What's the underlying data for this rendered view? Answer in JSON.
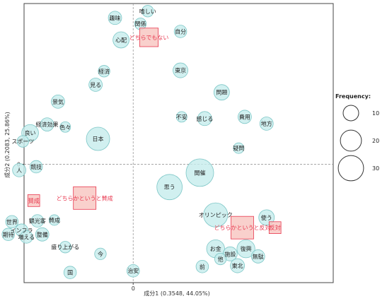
{
  "chart_data": {
    "type": "scatter",
    "xlabel": "成分1 (0.3548, 44.05%)",
    "ylabel": "成分2 (0.2083, 25.86%)",
    "x_ticks": [
      0
    ],
    "y_ticks": [
      0
    ],
    "xlim": [
      -0.9,
      1.65
    ],
    "ylim": [
      -1.4,
      1.9
    ],
    "legend": {
      "title": "Frequency:",
      "position": "right",
      "entries": [
        10,
        20,
        30
      ]
    },
    "categories": [
      {
        "label": "どちらでもない",
        "x": 0.13,
        "y": 1.5
      },
      {
        "label": "賛成",
        "x": -0.82,
        "y": -0.43
      },
      {
        "label": "どちらかというと賛成",
        "x": -0.4,
        "y": -0.4
      },
      {
        "label": "どちらかというと反対",
        "x": 0.9,
        "y": -0.75
      },
      {
        "label": "反対",
        "x": 1.17,
        "y": -0.75
      }
    ],
    "words": [
      {
        "label": "嗜しい",
        "x": 0.12,
        "y": 1.81,
        "freq": 5
      },
      {
        "label": "趣味",
        "x": -0.15,
        "y": 1.73,
        "freq": 7
      },
      {
        "label": "関係",
        "x": 0.06,
        "y": 1.66,
        "freq": 5
      },
      {
        "label": "自分",
        "x": 0.39,
        "y": 1.57,
        "freq": 6
      },
      {
        "label": "心配",
        "x": -0.1,
        "y": 1.47,
        "freq": 11
      },
      {
        "label": "東京",
        "x": 0.39,
        "y": 1.11,
        "freq": 9
      },
      {
        "label": "経済",
        "x": -0.24,
        "y": 1.1,
        "freq": 5
      },
      {
        "label": "見る",
        "x": -0.31,
        "y": 0.94,
        "freq": 7
      },
      {
        "label": "問題",
        "x": 0.73,
        "y": 0.85,
        "freq": 10
      },
      {
        "label": "景気",
        "x": -0.62,
        "y": 0.74,
        "freq": 7
      },
      {
        "label": "費用",
        "x": 0.92,
        "y": 0.56,
        "freq": 7
      },
      {
        "label": "不安",
        "x": 0.4,
        "y": 0.56,
        "freq": 4
      },
      {
        "label": "感じる",
        "x": 0.59,
        "y": 0.54,
        "freq": 8
      },
      {
        "label": "地方",
        "x": 1.1,
        "y": 0.48,
        "freq": 7
      },
      {
        "label": "良い",
        "x": -0.85,
        "y": 0.37,
        "freq": 12
      },
      {
        "label": "経済効果",
        "x": -0.71,
        "y": 0.47,
        "freq": 7
      },
      {
        "label": "色々",
        "x": -0.56,
        "y": 0.44,
        "freq": 4
      },
      {
        "label": "日本",
        "x": -0.29,
        "y": 0.3,
        "freq": 25
      },
      {
        "label": "疑問",
        "x": 0.87,
        "y": 0.19,
        "freq": 4
      },
      {
        "label": "スポーツ",
        "x": -0.91,
        "y": 0.27,
        "freq": 5
      },
      {
        "label": "競技",
        "x": -0.8,
        "y": -0.03,
        "freq": 6
      },
      {
        "label": "人",
        "x": -0.94,
        "y": -0.07,
        "freq": 7
      },
      {
        "label": "開催",
        "x": 0.55,
        "y": -0.1,
        "freq": 36
      },
      {
        "label": "思う",
        "x": 0.3,
        "y": -0.27,
        "freq": 30
      },
      {
        "label": "オリンピック",
        "x": 0.68,
        "y": -0.6,
        "freq": 27
      },
      {
        "label": "使う",
        "x": 1.1,
        "y": -0.63,
        "freq": 10
      },
      {
        "label": "世界",
        "x": -1.0,
        "y": -0.68,
        "freq": 6
      },
      {
        "label": "観光客",
        "x": -0.79,
        "y": -0.67,
        "freq": 6
      },
      {
        "label": "賛成",
        "x": -0.65,
        "y": -0.66,
        "freq": 4
      },
      {
        "label": "インフラ",
        "x": -0.92,
        "y": -0.78,
        "freq": 6
      },
      {
        "label": "期待",
        "x": -1.03,
        "y": -0.83,
        "freq": 6
      },
      {
        "label": "整備",
        "x": -0.75,
        "y": -0.83,
        "freq": 7
      },
      {
        "label": "増える",
        "x": -0.88,
        "y": -0.86,
        "freq": 6
      },
      {
        "label": "盛り上がる",
        "x": -0.56,
        "y": -0.98,
        "freq": 5
      },
      {
        "label": "今",
        "x": -0.27,
        "y": -1.06,
        "freq": 5
      },
      {
        "label": "復興",
        "x": 0.93,
        "y": -1.0,
        "freq": 14
      },
      {
        "label": "お金",
        "x": 0.68,
        "y": -1.0,
        "freq": 14
      },
      {
        "label": "施設",
        "x": 0.8,
        "y": -1.06,
        "freq": 8
      },
      {
        "label": "無駄",
        "x": 1.03,
        "y": -1.09,
        "freq": 7
      },
      {
        "label": "他",
        "x": 0.72,
        "y": -1.12,
        "freq": 5
      },
      {
        "label": "東北",
        "x": 0.86,
        "y": -1.2,
        "freq": 8
      },
      {
        "label": "前",
        "x": 0.57,
        "y": -1.21,
        "freq": 6
      },
      {
        "label": "治安",
        "x": 0.0,
        "y": -1.26,
        "freq": 6
      },
      {
        "label": "国",
        "x": -0.52,
        "y": -1.28,
        "freq": 6
      }
    ]
  }
}
